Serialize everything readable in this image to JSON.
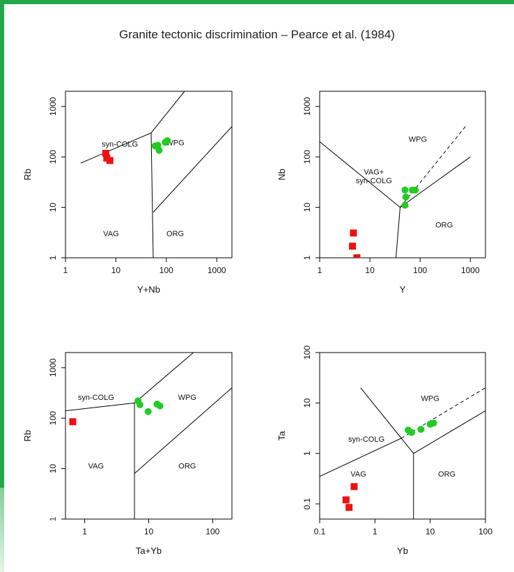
{
  "title": "Granite tectonic discrimination – Pearce et al. (1984)",
  "colors": {
    "frame": "#22a84a",
    "group1": "#ee1111",
    "group2": "#22cc22",
    "line": "#000000"
  },
  "chart_data": [
    {
      "type": "scatter",
      "xlabel": "Y+Nb",
      "ylabel": "Rb",
      "log_x": true,
      "log_y": true,
      "xlim": [
        1,
        2000
      ],
      "ylim": [
        1,
        2000
      ],
      "x_ticks": [
        "1",
        "10",
        "100",
        "1000"
      ],
      "y_ticks": [
        "1",
        "10",
        "100",
        "1000"
      ],
      "regions": [
        "syn-COLG",
        "WPG",
        "VAG",
        "ORG"
      ],
      "series": [
        {
          "color": "red",
          "x": [
            6.3,
            6.6,
            7.6
          ],
          "y": [
            118,
            95,
            85
          ]
        },
        {
          "color": "green",
          "x": [
            60,
            68,
            72,
            95,
            105
          ],
          "y": [
            165,
            170,
            135,
            195,
            210
          ]
        }
      ]
    },
    {
      "type": "scatter",
      "xlabel": "Y",
      "ylabel": "Nb",
      "log_x": true,
      "log_y": true,
      "xlim": [
        1,
        2000
      ],
      "ylim": [
        1,
        2000
      ],
      "x_ticks": [
        "1",
        "10",
        "100",
        "1000"
      ],
      "y_ticks": [
        "1",
        "10",
        "100",
        "1000"
      ],
      "regions": [
        "WPG",
        "VAG+",
        "syn-COLG",
        "ORG"
      ],
      "series": [
        {
          "color": "red",
          "x": [
            4.7,
            4.5,
            5.5
          ],
          "y": [
            3.1,
            1.7,
            1.0
          ]
        },
        {
          "color": "green",
          "x": [
            50,
            52,
            50,
            70,
            80
          ],
          "y": [
            22,
            16,
            11,
            22,
            22
          ]
        }
      ]
    },
    {
      "type": "scatter",
      "xlabel": "Ta+Yb",
      "ylabel": "Rb",
      "log_x": true,
      "log_y": true,
      "xlim": [
        0.5,
        200
      ],
      "ylim": [
        1,
        2000
      ],
      "x_ticks": [
        "1",
        "10",
        "100"
      ],
      "y_ticks": [
        "1",
        "10",
        "100",
        "1000"
      ],
      "regions": [
        "syn-COLG",
        "WPG",
        "VAG",
        "ORG"
      ],
      "series": [
        {
          "color": "red",
          "x": [
            0.65
          ],
          "y": [
            85
          ]
        },
        {
          "color": "green",
          "x": [
            6.8,
            7.3,
            9.8,
            13.5,
            15
          ],
          "y": [
            220,
            185,
            135,
            190,
            175
          ]
        }
      ]
    },
    {
      "type": "scatter",
      "xlabel": "Yb",
      "ylabel": "Ta",
      "log_x": true,
      "log_y": true,
      "xlim": [
        0.1,
        100
      ],
      "ylim": [
        0.05,
        100
      ],
      "x_ticks": [
        "0.1",
        "1",
        "10",
        "100"
      ],
      "y_ticks": [
        "0.1",
        "1",
        "10",
        "100"
      ],
      "regions": [
        "WPG",
        "syn-COLG",
        "VAG",
        "ORG"
      ],
      "series": [
        {
          "color": "red",
          "x": [
            0.3,
            0.42,
            0.34
          ],
          "y": [
            0.12,
            0.22,
            0.085
          ]
        },
        {
          "color": "green",
          "x": [
            4.0,
            4.6,
            6.8,
            10.0,
            11.5
          ],
          "y": [
            2.9,
            2.6,
            3.0,
            3.8,
            4.0
          ]
        }
      ]
    }
  ]
}
